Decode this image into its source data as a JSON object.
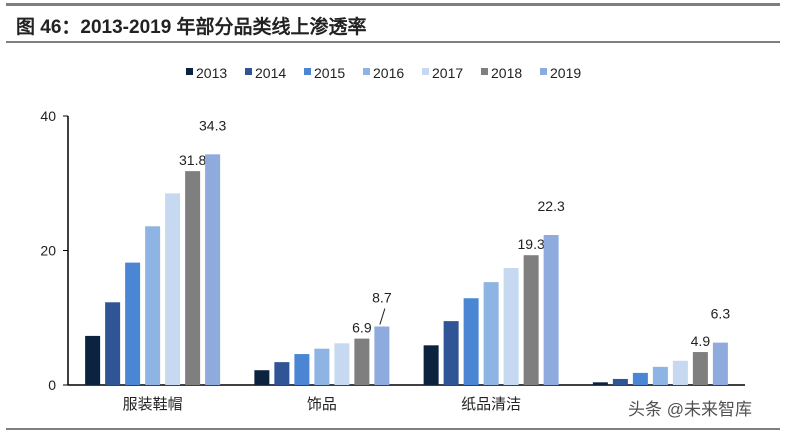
{
  "title": "图 46：2013-2019 年部分品类线上渗透率",
  "watermark": "头条 @未来智库",
  "chart_data": {
    "type": "bar",
    "categories": [
      "服装鞋帽",
      "饰品",
      "纸品清洁",
      ""
    ],
    "ylim": [
      0,
      40
    ],
    "yticks": [
      "0",
      "20",
      "40"
    ],
    "legend_position": "top",
    "grid": false,
    "series": [
      {
        "name": "2013",
        "color": "#0c2340",
        "values": [
          7.3,
          2.2,
          5.9,
          0.4
        ]
      },
      {
        "name": "2014",
        "color": "#2f5597",
        "values": [
          12.3,
          3.4,
          9.5,
          0.9
        ]
      },
      {
        "name": "2015",
        "color": "#4a86d4",
        "values": [
          18.2,
          4.6,
          12.9,
          1.8
        ]
      },
      {
        "name": "2016",
        "color": "#8db4e2",
        "values": [
          23.6,
          5.4,
          15.3,
          2.7
        ]
      },
      {
        "name": "2017",
        "color": "#c6d9f0",
        "values": [
          28.5,
          6.2,
          17.4,
          3.6
        ]
      },
      {
        "name": "2018",
        "color": "#7f7f7f",
        "values": [
          31.8,
          6.9,
          19.3,
          4.9
        ],
        "labels": [
          "31.8",
          "6.9",
          "19.3",
          "4.9"
        ]
      },
      {
        "name": "2019",
        "color": "#8faadc",
        "values": [
          34.3,
          8.7,
          22.3,
          6.3
        ],
        "labels": [
          "34.3",
          "8.7",
          "22.3",
          "6.3"
        ]
      }
    ]
  }
}
